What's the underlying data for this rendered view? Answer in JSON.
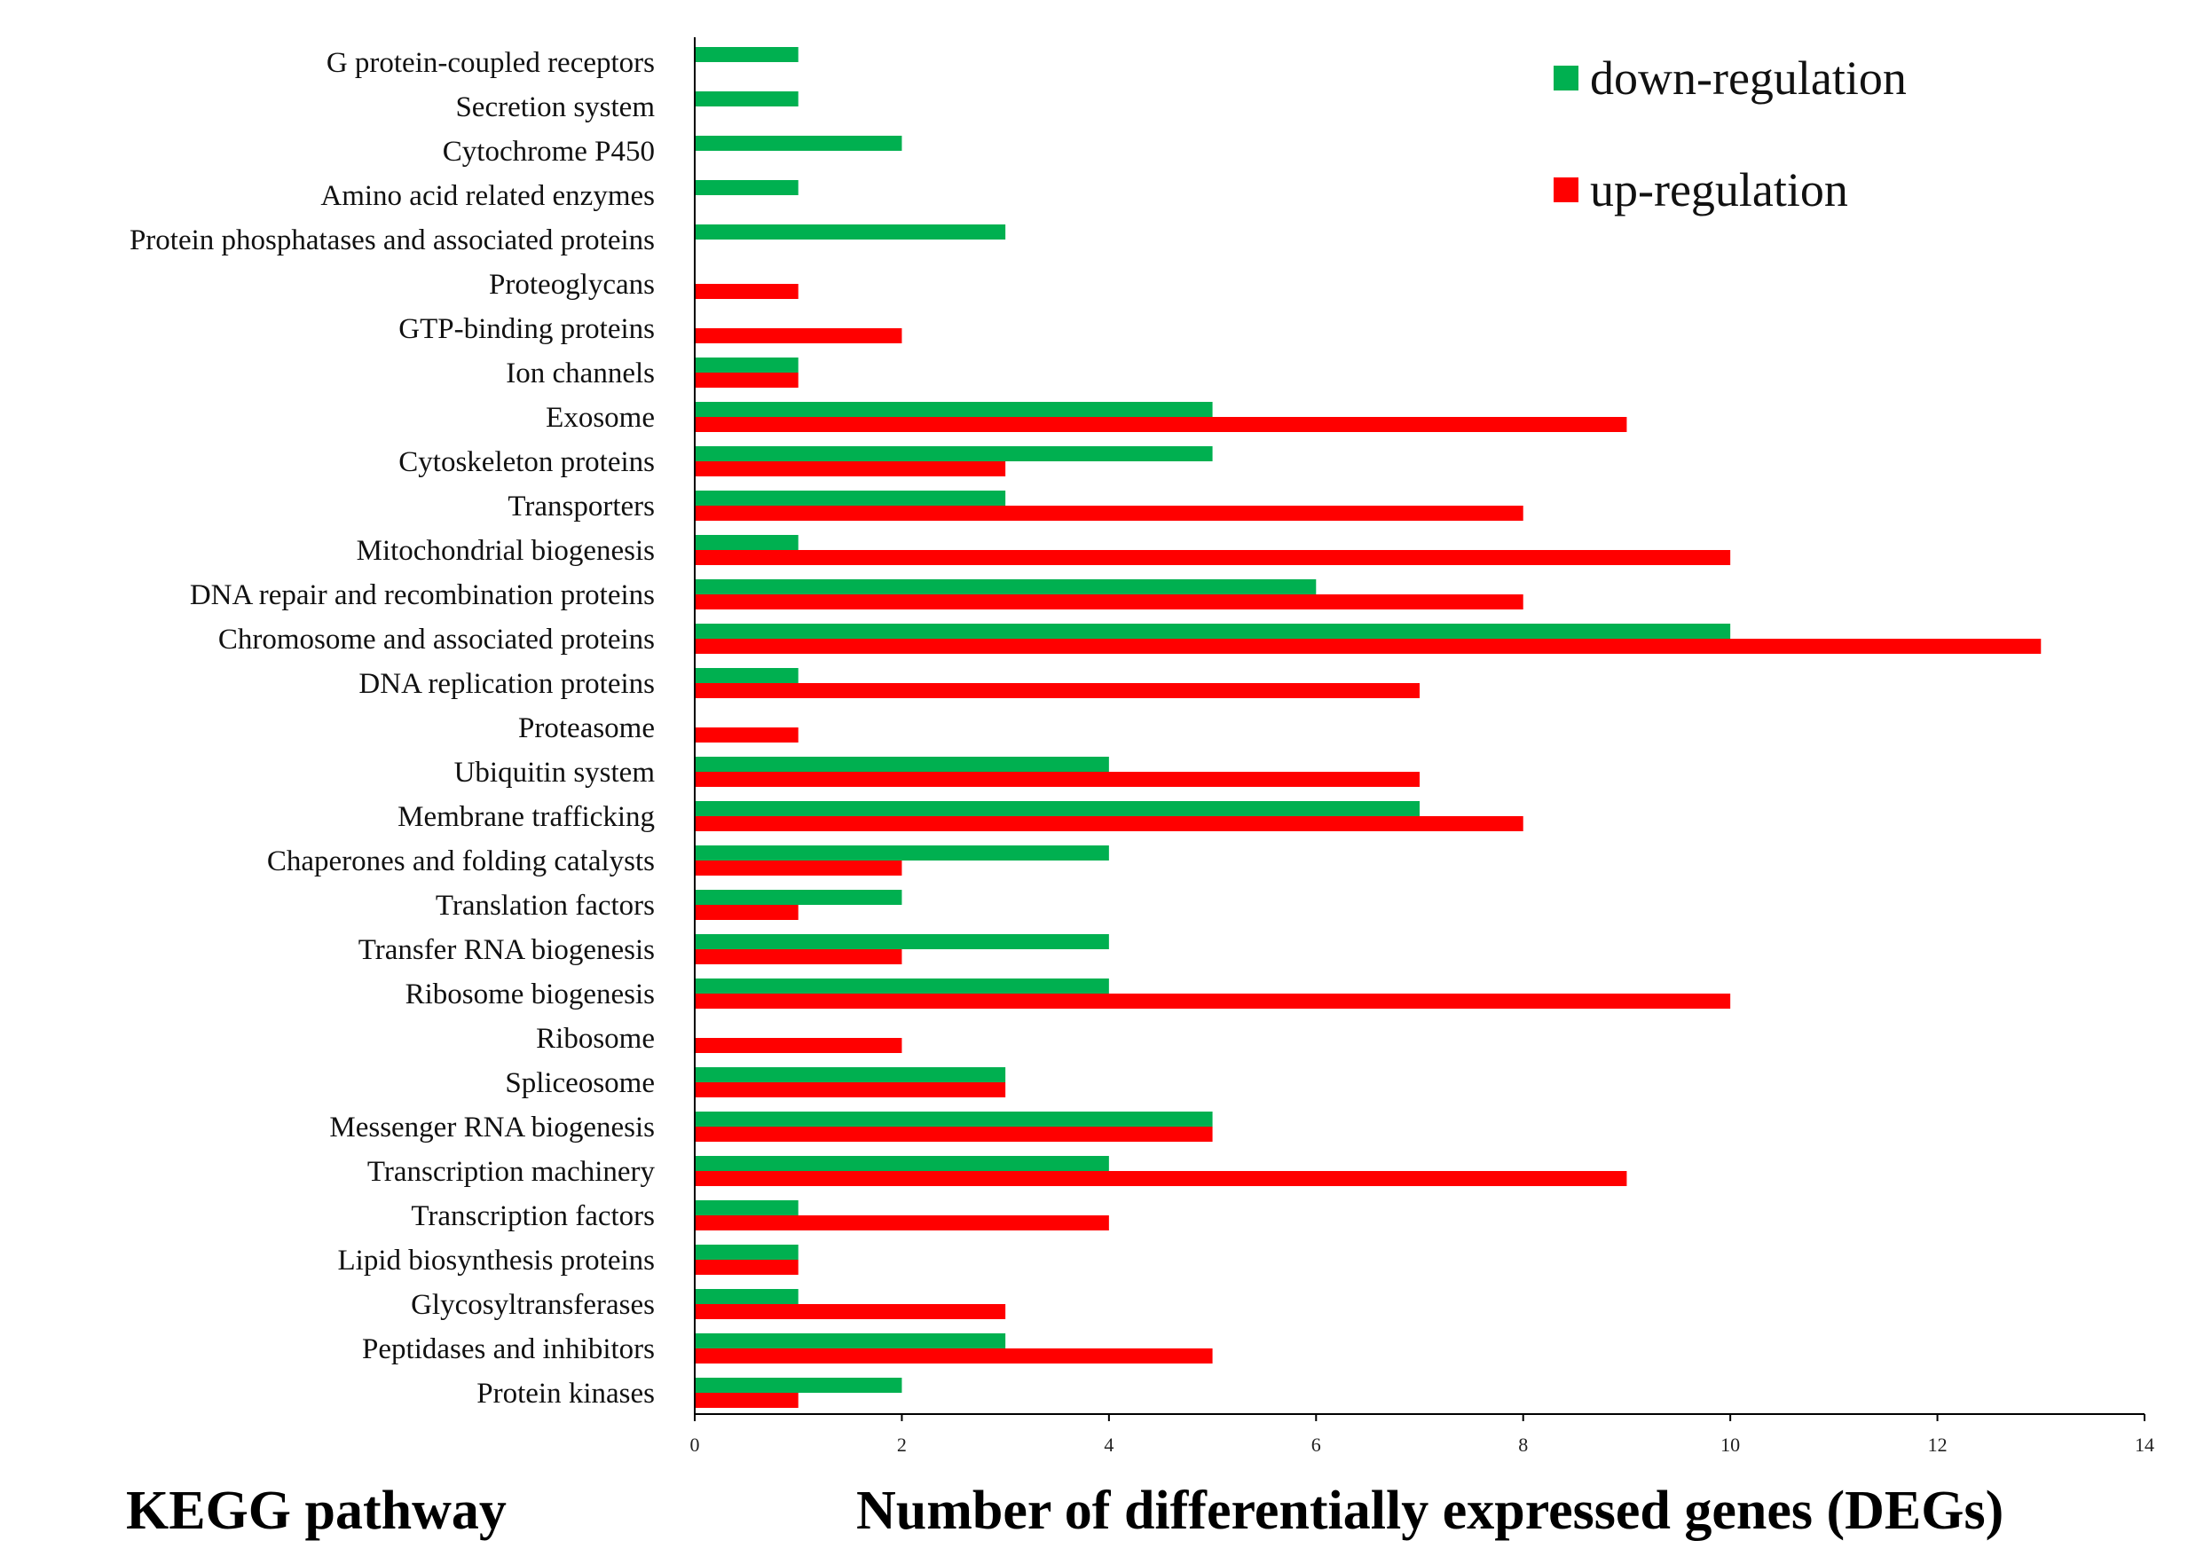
{
  "chart_data": {
    "type": "bar",
    "orientation": "horizontal",
    "xlabel": "Number of differentially expressed genes (DEGs)",
    "ylabel": "KEGG pathway",
    "xlim": [
      0,
      14
    ],
    "xticks": [
      0,
      2,
      4,
      6,
      8,
      10,
      12,
      14
    ],
    "legend_position": "top-right",
    "categories": [
      "G protein-coupled receptors",
      "Secretion system",
      "Cytochrome P450",
      "Amino acid related enzymes",
      "Protein phosphatases and associated proteins",
      "Proteoglycans",
      "GTP-binding proteins",
      "Ion channels",
      "Exosome",
      "Cytoskeleton proteins",
      "Transporters",
      "Mitochondrial biogenesis",
      "DNA repair and recombination proteins",
      "Chromosome and associated proteins",
      "DNA replication proteins",
      "Proteasome",
      "Ubiquitin system",
      "Membrane trafficking",
      "Chaperones and folding catalysts",
      "Translation factors",
      "Transfer RNA biogenesis",
      "Ribosome biogenesis",
      "Ribosome",
      "Spliceosome",
      "Messenger RNA biogenesis",
      "Transcription machinery",
      "Transcription factors",
      "Lipid biosynthesis proteins",
      "Glycosyltransferases",
      "Peptidases and inhibitors",
      "Protein kinases"
    ],
    "series": [
      {
        "name": "down-regulation",
        "color": "#00b050",
        "values": [
          1,
          1,
          2,
          1,
          3,
          0,
          0,
          1,
          5,
          5,
          3,
          1,
          6,
          10,
          1,
          0,
          4,
          7,
          4,
          2,
          4,
          4,
          0,
          3,
          5,
          4,
          1,
          1,
          1,
          3,
          2
        ]
      },
      {
        "name": "up-regulation",
        "color": "#ff0000",
        "values": [
          0,
          0,
          0,
          0,
          0,
          1,
          2,
          1,
          9,
          3,
          8,
          10,
          8,
          13,
          7,
          1,
          7,
          8,
          2,
          1,
          2,
          10,
          2,
          3,
          5,
          9,
          4,
          1,
          3,
          5,
          1
        ]
      }
    ]
  }
}
